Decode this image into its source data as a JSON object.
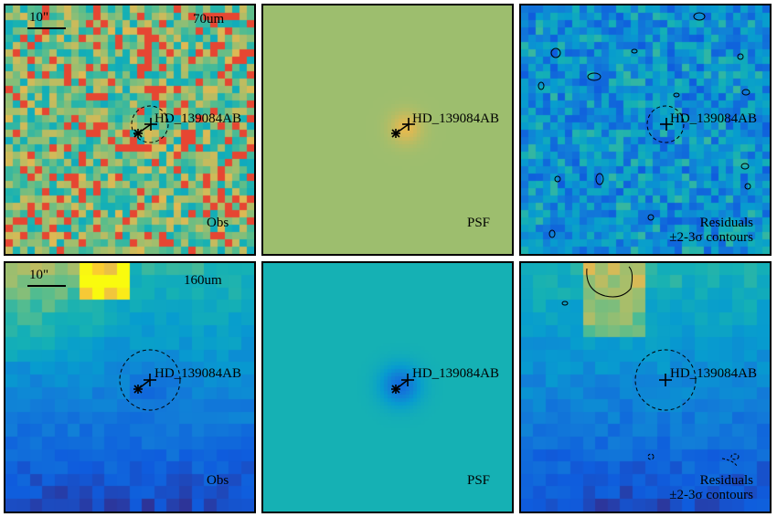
{
  "target_name": "HD_139084AB",
  "scale_bar_label": "10\"",
  "bands": [
    "70um",
    "160um"
  ],
  "panel_labels": {
    "obs": "Obs",
    "psf": "PSF",
    "residuals_line1": "Residuals",
    "residuals_line2": "±2-3σ contours"
  },
  "colors": {
    "psf_70_background": "#86c06a",
    "psf_160_background": "#62b49a",
    "contour_color": "#000000"
  }
}
